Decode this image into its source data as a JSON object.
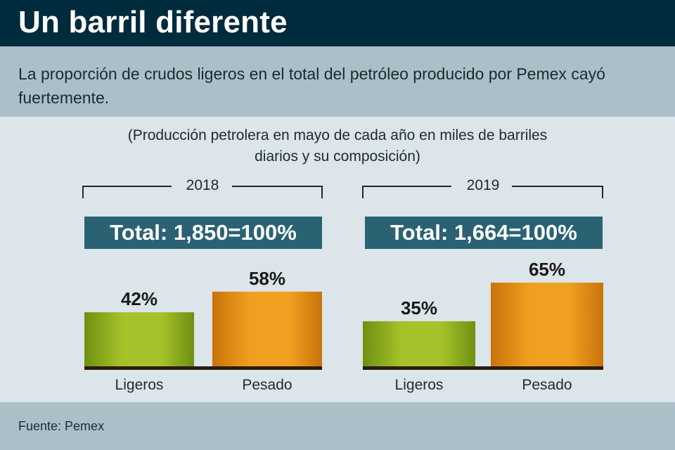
{
  "header": {
    "title": "Un barril diferente"
  },
  "subtitle": "La proporción de crudos ligeros en el total del petróleo producido por Pemex cayó fuertemente.",
  "note_lines": [
    "(Producción petrolera en mayo de cada año en miles de barriles",
    "diarios y su composición)"
  ],
  "source": "Fuente: Pemex",
  "colors": {
    "ligeros": "#8fae1b",
    "pesado": "#e2900f",
    "header_bg": "#002b3c",
    "total_box": "#2a6273"
  },
  "chart_data": [
    {
      "type": "bar",
      "year": "2018",
      "total_label": "Total: 1,850=100%",
      "categories": [
        "Ligeros",
        "Pesado"
      ],
      "values": [
        42,
        58
      ],
      "value_labels": [
        "42%",
        "58%"
      ],
      "ylim": [
        0,
        65
      ]
    },
    {
      "type": "bar",
      "year": "2019",
      "total_label": "Total: 1,664=100%",
      "categories": [
        "Ligeros",
        "Pesado"
      ],
      "values": [
        35,
        65
      ],
      "value_labels": [
        "35%",
        "65%"
      ],
      "ylim": [
        0,
        65
      ]
    }
  ]
}
